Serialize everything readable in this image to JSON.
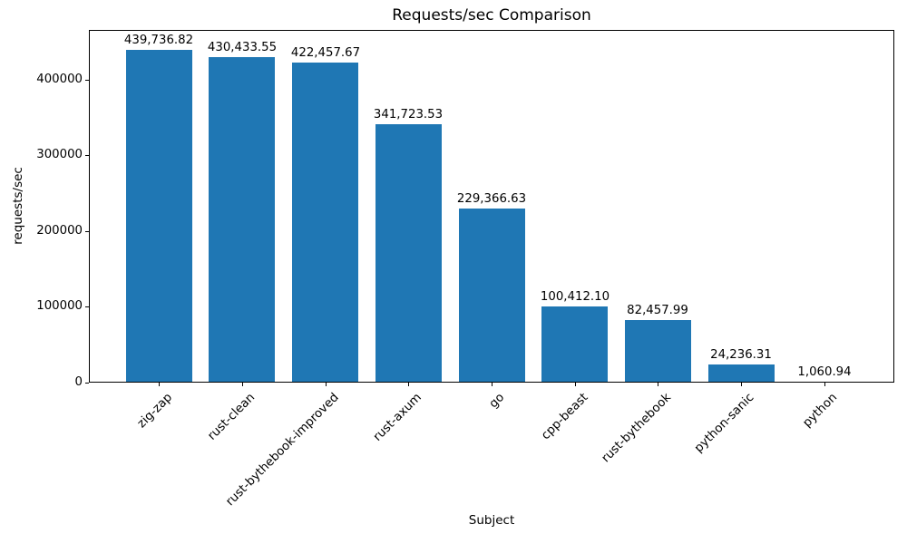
{
  "chart_data": {
    "type": "bar",
    "title": "Requests/sec Comparison",
    "xlabel": "Subject",
    "ylabel": "requests/sec",
    "categories": [
      "zig-zap",
      "rust-clean",
      "rust-bythebook-improved",
      "rust-axum",
      "go",
      "cpp-beast",
      "rust-bythebook",
      "python-sanic",
      "python"
    ],
    "values": [
      439736.82,
      430433.55,
      422457.67,
      341723.53,
      229366.63,
      100412.1,
      82457.99,
      24236.31,
      1060.94
    ],
    "value_labels": [
      "439,736.82",
      "430,433.55",
      "422,457.67",
      "341,723.53",
      "229,366.63",
      "100,412.10",
      "82,457.99",
      "24,236.31",
      "1,060.94"
    ],
    "yticks": [
      0,
      100000,
      200000,
      300000,
      400000
    ],
    "ytick_labels": [
      "0",
      "100000",
      "200000",
      "300000",
      "400000"
    ],
    "ylim": [
      0,
      465868
    ],
    "bar_color": "#1f77b4",
    "grid": false,
    "legend": null
  }
}
